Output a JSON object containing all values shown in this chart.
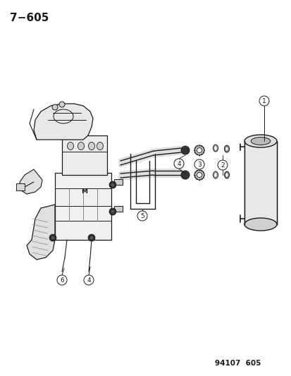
{
  "title": "7−605",
  "footer": "94107  605",
  "bg_color": "#ffffff",
  "title_fontsize": 11,
  "footer_fontsize": 7.5,
  "fig_width": 4.14,
  "fig_height": 5.33,
  "dpi": 100,
  "black": "#1a1a1a",
  "gray_light": "#cccccc",
  "gray_mid": "#aaaaaa"
}
